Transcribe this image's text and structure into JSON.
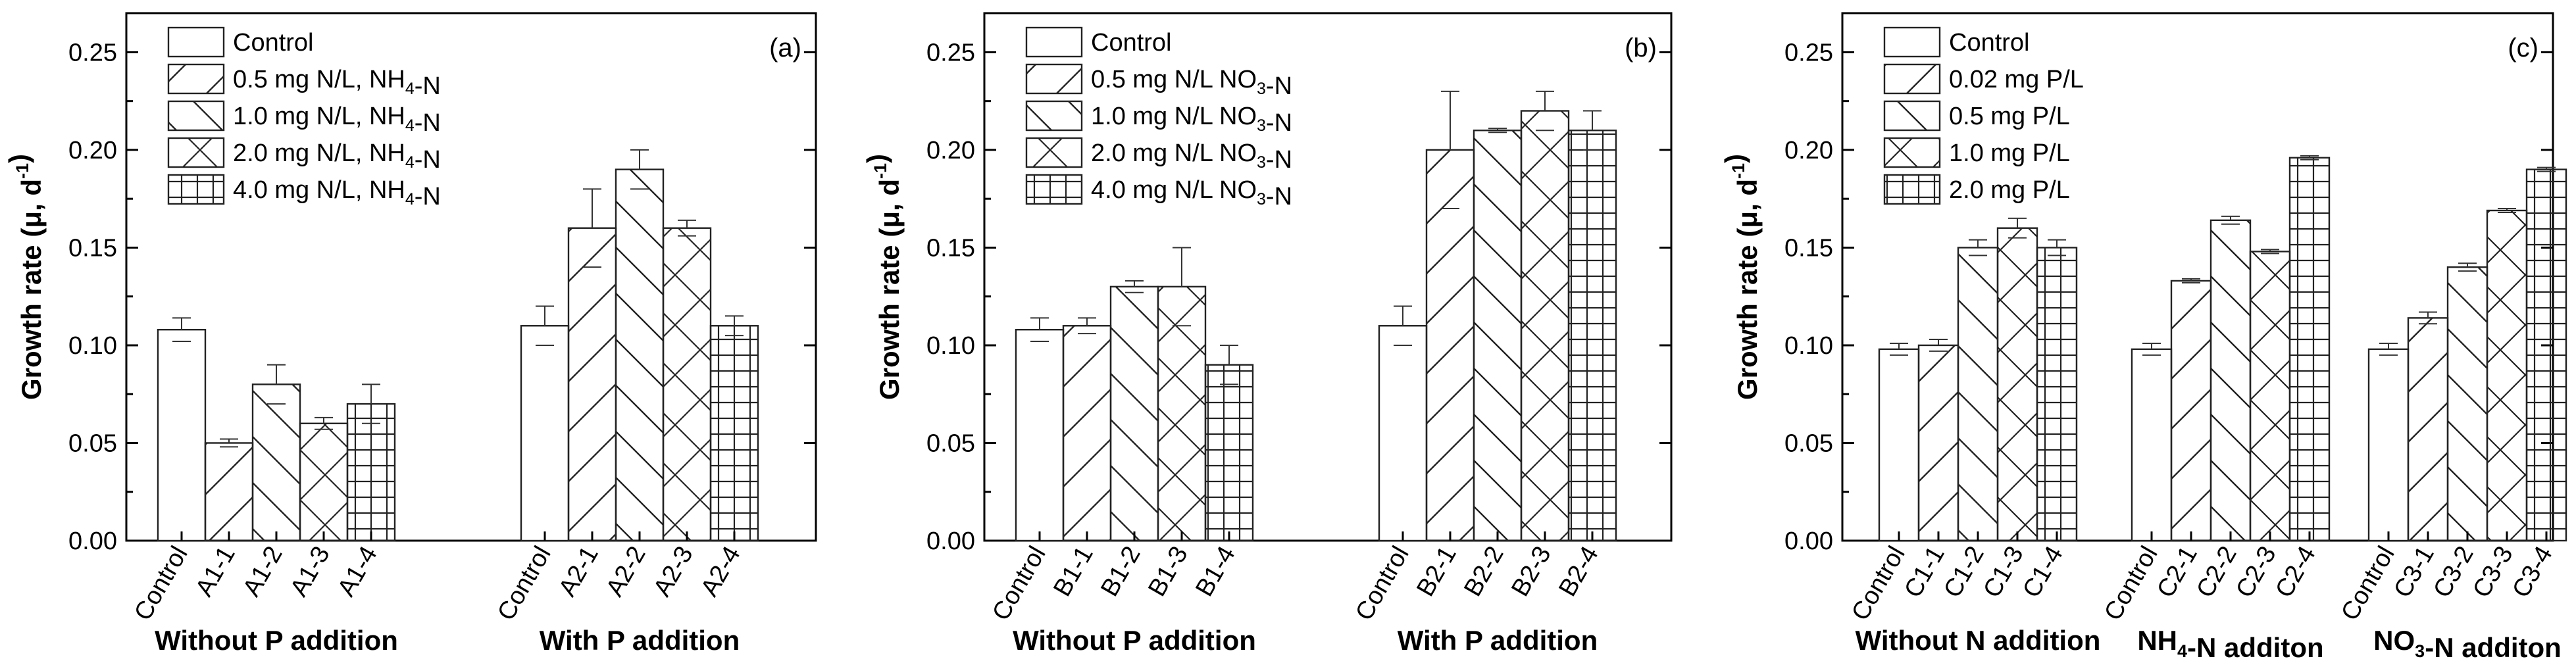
{
  "chart_data": [
    {
      "type": "bar",
      "panel_label": "(a)",
      "ylabel": "Growth rate (μ, d⁻¹)",
      "ylim": [
        0,
        0.27
      ],
      "yticks": [
        "0.00",
        "0.05",
        "0.10",
        "0.15",
        "0.20",
        "0.25"
      ],
      "groups": [
        {
          "label": "Without P addition",
          "categories": [
            "Control",
            "A1-1",
            "A1-2",
            "A1-3",
            "A1-4"
          ],
          "values": [
            0.108,
            0.05,
            0.08,
            0.06,
            0.07
          ],
          "errors": [
            0.006,
            0.002,
            0.01,
            0.003,
            0.01
          ]
        },
        {
          "label": "With P addition",
          "categories": [
            "Control",
            "A2-1",
            "A2-2",
            "A2-3",
            "A2-4"
          ],
          "values": [
            0.11,
            0.16,
            0.19,
            0.16,
            0.11
          ],
          "errors": [
            0.01,
            0.02,
            0.01,
            0.004,
            0.005
          ]
        }
      ],
      "legend": [
        "Control",
        "0.5 mg N/L, NH₄-N",
        "1.0 mg N/L, NH₄-N",
        "2.0 mg N/L, NH₄-N",
        "4.0 mg N/L, NH₄-N"
      ],
      "legend_position": "top-left"
    },
    {
      "type": "bar",
      "panel_label": "(b)",
      "ylabel": "Growth rate (μ, d⁻¹)",
      "ylim": [
        0,
        0.27
      ],
      "yticks": [
        "0.00",
        "0.05",
        "0.10",
        "0.15",
        "0.20",
        "0.25"
      ],
      "groups": [
        {
          "label": "Without P addition",
          "categories": [
            "Control",
            "B1-1",
            "B1-2",
            "B1-3",
            "B1-4"
          ],
          "values": [
            0.108,
            0.11,
            0.13,
            0.13,
            0.09
          ],
          "errors": [
            0.006,
            0.004,
            0.003,
            0.02,
            0.01
          ]
        },
        {
          "label": "With P addition",
          "categories": [
            "Control",
            "B2-1",
            "B2-2",
            "B2-3",
            "B2-4"
          ],
          "values": [
            0.11,
            0.2,
            0.21,
            0.22,
            0.21
          ],
          "errors": [
            0.01,
            0.03,
            0.001,
            0.01,
            0.01
          ]
        }
      ],
      "legend": [
        "Control",
        "0.5 mg N/L NO₃-N",
        "1.0 mg N/L NO₃-N",
        "2.0 mg N/L NO₃-N",
        "4.0 mg N/L NO₃-N"
      ],
      "legend_position": "top-left"
    },
    {
      "type": "bar",
      "panel_label": "(c)",
      "ylabel": "Growth rate (μ, d⁻¹)",
      "ylim": [
        0,
        0.27
      ],
      "yticks": [
        "0.00",
        "0.05",
        "0.10",
        "0.15",
        "0.20",
        "0.25"
      ],
      "groups": [
        {
          "label": "Without N addition",
          "categories": [
            "Control",
            "C1-1",
            "C1-2",
            "C1-3",
            "C1-4"
          ],
          "values": [
            0.098,
            0.1,
            0.15,
            0.16,
            0.15
          ],
          "errors": [
            0.003,
            0.003,
            0.004,
            0.005,
            0.004
          ]
        },
        {
          "label": "NH₄-N additon",
          "categories": [
            "Control",
            "C2-1",
            "C2-2",
            "C2-3",
            "C2-4"
          ],
          "values": [
            0.098,
            0.133,
            0.164,
            0.148,
            0.196
          ],
          "errors": [
            0.003,
            0.001,
            0.002,
            0.001,
            0.001
          ]
        },
        {
          "label": "NO₃-N additon",
          "categories": [
            "Control",
            "C3-1",
            "C3-2",
            "C3-3",
            "C3-4"
          ],
          "values": [
            0.098,
            0.114,
            0.14,
            0.169,
            0.19
          ],
          "errors": [
            0.003,
            0.003,
            0.002,
            0.001,
            0.001
          ]
        }
      ],
      "legend": [
        "Control",
        "0.02 mg P/L",
        "0.5 mg P/L",
        "1.0 mg P/L",
        "2.0 mg P/L"
      ],
      "legend_position": "top-left"
    }
  ]
}
